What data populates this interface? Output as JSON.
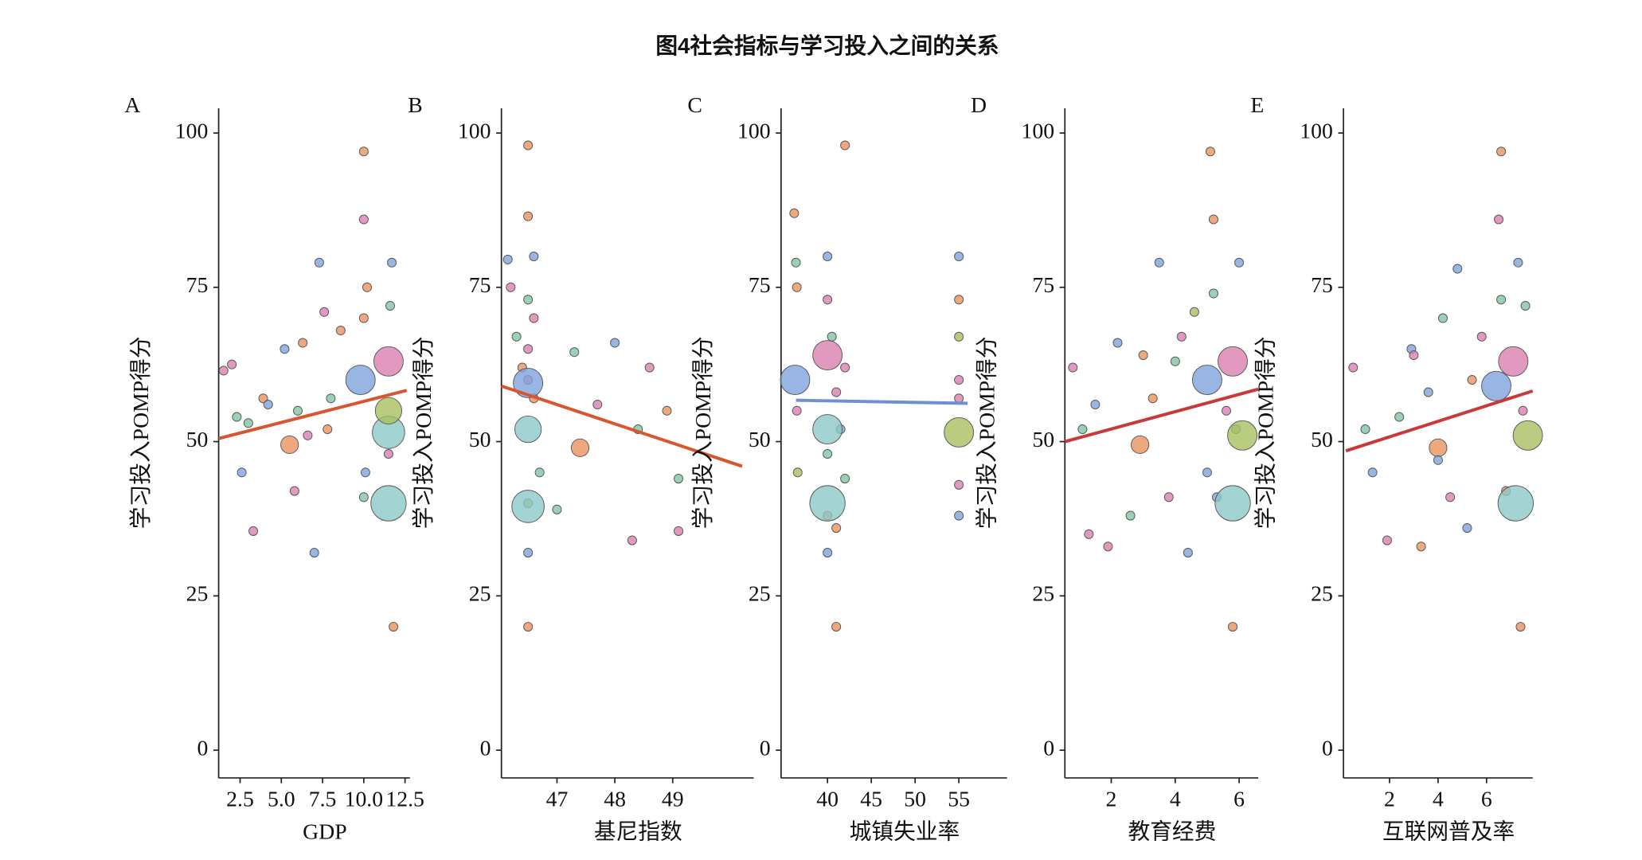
{
  "title": "图4社会指标与学习投入之间的关系",
  "chart_data": [
    {
      "type": "scatter",
      "label": "A",
      "x_label": "GDP",
      "y_label": "学习投入POMP得分",
      "xlim": [
        1.2,
        12.8
      ],
      "ylim": [
        -4.5,
        104
      ],
      "xticks": [
        2.5,
        {
          "value": 5,
          "label": "5.0"
        },
        7.5,
        {
          "value": 10,
          "label": "10.0"
        },
        12.5
      ],
      "yticks": [
        0,
        25,
        50,
        75,
        100
      ],
      "x": [
        1.5,
        2.0,
        2.3,
        2.6,
        3.0,
        3.3,
        3.9,
        4.2,
        5.2,
        5.5,
        6.0,
        6.3,
        6.6,
        7.0,
        7.3,
        7.6,
        8.0,
        8.6,
        9.8,
        10.0,
        10.0,
        10.0,
        10.0,
        10.2,
        11.5,
        11.5,
        11.5,
        11.5,
        11.7,
        11.8,
        11.5,
        11.6,
        10.1,
        7.8,
        5.8
      ],
      "y": [
        61.5,
        62.5,
        54,
        45,
        53,
        35.5,
        57,
        56,
        65,
        49.5,
        55,
        66,
        51,
        32,
        79,
        71,
        57,
        68,
        60,
        86,
        97,
        70,
        41,
        75,
        63,
        51.5,
        40,
        55,
        79,
        20,
        48,
        72,
        45,
        52,
        42
      ],
      "size": [
        1,
        1,
        1,
        1,
        1,
        1,
        1,
        1,
        1,
        4,
        1,
        1,
        1,
        1,
        1,
        1,
        1,
        1,
        8,
        1,
        1,
        1,
        1,
        1,
        8,
        9,
        10,
        7,
        1,
        1,
        1,
        1,
        1,
        1,
        1
      ],
      "colors": [
        "#d97fb0",
        "#d97fb0",
        "#7fc4a4",
        "#7fa3dc",
        "#7fc4a4",
        "#d97fb0",
        "#e8945c",
        "#7fa3dc",
        "#7fa3dc",
        "#e8945c",
        "#7fc4a4",
        "#e8945c",
        "#d97fb0",
        "#7fa3dc",
        "#7fa3dc",
        "#d97fb0",
        "#7fc4a4",
        "#e8945c",
        "#7fa3dc",
        "#d97fb0",
        "#e8945c",
        "#e8945c",
        "#7fc4a4",
        "#e8945c",
        "#d97fb0",
        "#8cc8c8",
        "#8cc8c8",
        "#a8bf5f",
        "#7fa3dc",
        "#e8945c",
        "#d97fb0",
        "#7fc4a4",
        "#7fa3dc",
        "#e8945c",
        "#d97fb0"
      ],
      "trend": {
        "x": [
          1.2,
          12.6
        ],
        "y": [
          50.5,
          58.3
        ],
        "color": "#d8562f"
      }
    },
    {
      "type": "scatter",
      "label": "B",
      "x_label": "基尼指数",
      "y_label": "学习投入POMP得分",
      "xlim": [
        46.04,
        50.4
      ],
      "ylim": [
        -4.5,
        104
      ],
      "xticks": [
        47,
        48,
        49
      ],
      "yticks": [
        0,
        25,
        50,
        75,
        100
      ],
      "x": [
        46.15,
        46.2,
        46.3,
        46.4,
        46.5,
        46.5,
        46.5,
        46.5,
        46.5,
        46.5,
        46.6,
        46.6,
        46.6,
        46.7,
        46.5,
        46.5,
        46.5,
        46.5,
        46.5,
        47.3,
        47.7,
        47.4,
        48.0,
        48.3,
        48.6,
        48.9,
        49.1,
        49.1,
        48.4,
        47.0
      ],
      "y": [
        79.5,
        75,
        67,
        62,
        98,
        86.5,
        73,
        60,
        52,
        40,
        80,
        70,
        57,
        45,
        32,
        20,
        59.5,
        39.5,
        65,
        64.5,
        56,
        49,
        66,
        34,
        62,
        55,
        44,
        35.5,
        52,
        39
      ],
      "size": [
        1,
        1,
        1,
        1,
        1,
        1,
        1,
        1,
        7,
        1,
        1,
        1,
        1,
        1,
        1,
        1,
        8,
        9,
        1,
        1,
        1,
        4,
        1,
        1,
        1,
        1,
        1,
        1,
        1,
        1
      ],
      "colors": [
        "#7fa3dc",
        "#d97fb0",
        "#7fc4a4",
        "#e8945c",
        "#e8945c",
        "#e8945c",
        "#7fc4a4",
        "#d97fb0",
        "#8cc8c8",
        "#a8bf5f",
        "#7fa3dc",
        "#d97fb0",
        "#e8945c",
        "#7fc4a4",
        "#7fa3dc",
        "#e8945c",
        "#7fa3dc",
        "#8cc8c8",
        "#d97fb0",
        "#7fc4a4",
        "#d97fb0",
        "#e8945c",
        "#7fa3dc",
        "#d97fb0",
        "#d97fb0",
        "#e8945c",
        "#7fc4a4",
        "#d97fb0",
        "#7fc4a4",
        "#7fc4a4"
      ],
      "trend": {
        "x": [
          46.04,
          50.2
        ],
        "y": [
          59,
          46
        ],
        "color": "#d8562f"
      }
    },
    {
      "type": "scatter",
      "label": "C",
      "x_label": "城镇失业率",
      "y_label": "学习投入POMP得分",
      "xlim": [
        34.7,
        60.5
      ],
      "ylim": [
        -4.5,
        104
      ],
      "xticks": [
        40,
        45,
        50,
        55
      ],
      "yticks": [
        0,
        25,
        50,
        75,
        100
      ],
      "x": [
        36.2,
        36.4,
        36.5,
        36.5,
        36.6,
        40,
        40,
        40,
        40,
        40,
        40,
        40.5,
        41,
        41,
        41,
        41.5,
        42,
        42,
        42,
        40,
        40,
        55,
        55,
        55,
        55,
        55,
        55,
        55,
        36.3,
        55
      ],
      "y": [
        87,
        79,
        75,
        55,
        45,
        80,
        73,
        64,
        48,
        38,
        32,
        67,
        58,
        36,
        20,
        52,
        98,
        62,
        44,
        40,
        52,
        80,
        73,
        67,
        60,
        51.5,
        43,
        38,
        60,
        57
      ],
      "size": [
        1,
        1,
        1,
        1,
        1,
        1,
        1,
        8,
        1,
        1,
        1,
        1,
        1,
        1,
        1,
        1,
        1,
        1,
        1,
        10,
        8,
        1,
        1,
        1,
        1,
        8,
        1,
        1,
        8,
        1
      ],
      "colors": [
        "#e8945c",
        "#7fc4a4",
        "#e8945c",
        "#d97fb0",
        "#a8bf5f",
        "#7fa3dc",
        "#d97fb0",
        "#d97fb0",
        "#7fc4a4",
        "#e8945c",
        "#7fa3dc",
        "#7fc4a4",
        "#d97fb0",
        "#e8945c",
        "#e8945c",
        "#7fa3dc",
        "#e8945c",
        "#d97fb0",
        "#7fc4a4",
        "#8cc8c8",
        "#8cc8c8",
        "#7fa3dc",
        "#e8945c",
        "#a8bf5f",
        "#d97fb0",
        "#a8bf5f",
        "#d97fb0",
        "#7fa3dc",
        "#7fa3dc",
        "#d97fb0"
      ],
      "trend": {
        "x": [
          36.4,
          56
        ],
        "y": [
          56.7,
          56.2
        ],
        "color": "#6f8fcf"
      }
    },
    {
      "type": "scatter",
      "label": "D",
      "x_label": "教育经费",
      "y_label": "学习投入POMP得分",
      "xlim": [
        0.55,
        6.6
      ],
      "ylim": [
        -4.5,
        104
      ],
      "xticks": [
        2,
        4,
        6
      ],
      "yticks": [
        0,
        25,
        50,
        75,
        100
      ],
      "x": [
        0.8,
        1.1,
        1.3,
        1.5,
        1.9,
        2.2,
        2.6,
        2.9,
        3.3,
        3.5,
        3.8,
        4.0,
        4.2,
        4.6,
        5.0,
        5.1,
        5.2,
        5.2,
        5.3,
        5.6,
        5.8,
        5.8,
        5.8,
        6.0,
        5.9,
        6.1,
        5.0,
        3.0,
        4.4
      ],
      "y": [
        62,
        52,
        35,
        56,
        33,
        66,
        38,
        49.5,
        57,
        79,
        41,
        63,
        67,
        71,
        60,
        97,
        86,
        74,
        41,
        55,
        63,
        40,
        20,
        79,
        52,
        51,
        45,
        64,
        32
      ],
      "size": [
        1,
        1,
        1,
        1,
        1,
        1,
        1,
        4,
        1,
        1,
        1,
        1,
        1,
        1,
        8,
        1,
        1,
        1,
        1,
        1,
        8,
        10,
        1,
        1,
        1,
        8,
        1,
        1,
        1
      ],
      "colors": [
        "#d97fb0",
        "#7fc4a4",
        "#d97fb0",
        "#7fa3dc",
        "#d97fb0",
        "#7fa3dc",
        "#7fc4a4",
        "#e8945c",
        "#e8945c",
        "#7fa3dc",
        "#d97fb0",
        "#7fc4a4",
        "#d97fb0",
        "#a8bf5f",
        "#7fa3dc",
        "#e8945c",
        "#e8945c",
        "#7fc4a4",
        "#7fa3dc",
        "#d97fb0",
        "#d97fb0",
        "#8cc8c8",
        "#e8945c",
        "#7fa3dc",
        "#7fc4a4",
        "#a8bf5f",
        "#7fa3dc",
        "#e8945c",
        "#7fa3dc"
      ],
      "trend": {
        "x": [
          0.55,
          6.6
        ],
        "y": [
          50,
          58.5
        ],
        "color": "#c8393a"
      }
    },
    {
      "type": "scatter",
      "label": "E",
      "x_label": "互联网普及率",
      "y_label": "学习投入POMP得分",
      "xlim": [
        0.1,
        7.9
      ],
      "ylim": [
        -4.5,
        104
      ],
      "xticks": [
        2,
        4,
        6
      ],
      "yticks": [
        0,
        25,
        50,
        75,
        100
      ],
      "x": [
        0.5,
        1.0,
        1.3,
        1.9,
        2.4,
        2.9,
        3.3,
        3.6,
        4.0,
        4.2,
        4.5,
        4.8,
        5.2,
        5.4,
        5.8,
        6.4,
        6.5,
        6.6,
        6.6,
        6.8,
        7.1,
        7.2,
        7.7,
        7.3,
        7.4,
        7.5,
        7.6,
        4.0,
        3.0
      ],
      "y": [
        62,
        52,
        45,
        34,
        54,
        65,
        33,
        58,
        49,
        70,
        41,
        78,
        36,
        60,
        67,
        59,
        86,
        97,
        73,
        42,
        63,
        40,
        51,
        79,
        20,
        55,
        72,
        47,
        64
      ],
      "size": [
        1,
        1,
        1,
        1,
        1,
        1,
        1,
        1,
        4,
        1,
        1,
        1,
        1,
        1,
        1,
        8,
        1,
        1,
        1,
        1,
        8,
        10,
        8,
        1,
        1,
        1,
        1,
        1,
        1
      ],
      "colors": [
        "#d97fb0",
        "#7fc4a4",
        "#7fa3dc",
        "#d97fb0",
        "#7fc4a4",
        "#7fa3dc",
        "#e8945c",
        "#7fa3dc",
        "#e8945c",
        "#7fc4a4",
        "#d97fb0",
        "#7fa3dc",
        "#7fa3dc",
        "#e8945c",
        "#d97fb0",
        "#7fa3dc",
        "#d97fb0",
        "#e8945c",
        "#7fc4a4",
        "#e8945c",
        "#d97fb0",
        "#8cc8c8",
        "#a8bf5f",
        "#7fa3dc",
        "#e8945c",
        "#d97fb0",
        "#7fc4a4",
        "#7fa3dc",
        "#d97fb0"
      ],
      "trend": {
        "x": [
          0.2,
          7.9
        ],
        "y": [
          48.5,
          58.2
        ],
        "color": "#c8393a"
      }
    }
  ]
}
